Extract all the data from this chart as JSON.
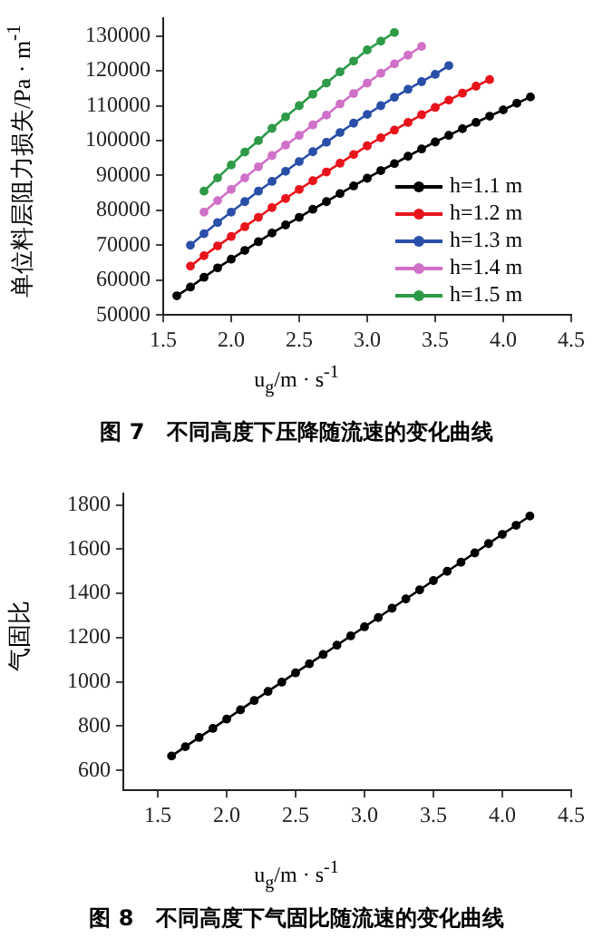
{
  "chart_data": [
    {
      "type": "line",
      "title": "图 7　不同高度下压降随流速的变化曲线",
      "xlabel": "u$_{g}$/m · s$^{-1}$",
      "ylabel": "单位料层阻力损失/Pa · m$^{-1}$",
      "xlim": [
        1.5,
        4.5
      ],
      "ylim": [
        50000,
        135000
      ],
      "xticks": [
        {
          "value": 1.5,
          "label": "1.5"
        },
        {
          "value": 2,
          "label": "2.0"
        },
        {
          "value": 2.5,
          "label": "2.5"
        },
        {
          "value": 3,
          "label": "3.0"
        },
        {
          "value": 3.5,
          "label": "3.5"
        },
        {
          "value": 4,
          "label": "4.0"
        },
        {
          "value": 4.5,
          "label": "4.5"
        }
      ],
      "yticks": [
        50000,
        60000,
        70000,
        80000,
        90000,
        100000,
        110000,
        120000,
        130000
      ],
      "legend": "bottom right",
      "marker": "circle",
      "series": [
        {
          "name": "h=1.1 m",
          "color": "#000000",
          "x": [
            1.6,
            1.7,
            1.8,
            1.9,
            2.0,
            2.1,
            2.2,
            2.3,
            2.4,
            2.5,
            2.6,
            2.7,
            2.8,
            2.9,
            3.0,
            3.1,
            3.2,
            3.3,
            3.4,
            3.5,
            3.6,
            3.7,
            3.8,
            3.9,
            4.0,
            4.1,
            4.2
          ],
          "values": [
            55500,
            58000,
            60800,
            63500,
            66000,
            68500,
            71000,
            73500,
            75800,
            78000,
            80300,
            82500,
            84800,
            87000,
            89200,
            91400,
            93400,
            95500,
            97600,
            99600,
            101500,
            103400,
            105200,
            107000,
            108800,
            110700,
            112500
          ]
        },
        {
          "name": "h=1.2 m",
          "color": "#e8141c",
          "x": [
            1.7,
            1.8,
            1.9,
            2.0,
            2.1,
            2.2,
            2.3,
            2.4,
            2.5,
            2.6,
            2.7,
            2.8,
            2.9,
            3.0,
            3.1,
            3.2,
            3.3,
            3.4,
            3.5,
            3.6,
            3.7,
            3.8,
            3.9
          ],
          "values": [
            64000,
            67000,
            69800,
            72500,
            75300,
            78000,
            80800,
            83400,
            86000,
            88500,
            91000,
            93500,
            96000,
            98500,
            100800,
            103000,
            105200,
            107400,
            109500,
            111600,
            113600,
            115600,
            117500
          ]
        },
        {
          "name": "h=1.3 m",
          "color": "#2a4fa8",
          "x": [
            1.7,
            1.8,
            1.9,
            2.0,
            2.1,
            2.2,
            2.3,
            2.4,
            2.5,
            2.6,
            2.7,
            2.8,
            2.9,
            3.0,
            3.1,
            3.2,
            3.3,
            3.4,
            3.5,
            3.6
          ],
          "values": [
            70000,
            73300,
            76500,
            79500,
            82500,
            85500,
            88300,
            91200,
            94000,
            96800,
            99500,
            102300,
            105000,
            107500,
            110000,
            112400,
            114700,
            116900,
            119000,
            121500
          ]
        },
        {
          "name": "h=1.4 m",
          "color": "#d070c8",
          "x": [
            1.8,
            1.9,
            2.0,
            2.1,
            2.2,
            2.3,
            2.4,
            2.5,
            2.6,
            2.7,
            2.8,
            2.9,
            3.0,
            3.1,
            3.2,
            3.3,
            3.4
          ],
          "values": [
            79500,
            82800,
            86000,
            89300,
            92500,
            95700,
            98700,
            101500,
            104500,
            107300,
            110500,
            113500,
            116500,
            119300,
            122000,
            124500,
            127000
          ]
        },
        {
          "name": "h=1.5 m",
          "color": "#2e9a48",
          "x": [
            1.8,
            1.9,
            2.0,
            2.1,
            2.2,
            2.3,
            2.4,
            2.5,
            2.6,
            2.7,
            2.8,
            2.9,
            3.0,
            3.1,
            3.2
          ],
          "values": [
            85500,
            89300,
            93000,
            96700,
            100000,
            103500,
            106800,
            110000,
            113300,
            116500,
            119700,
            122800,
            126000,
            128500,
            131000
          ]
        }
      ]
    },
    {
      "type": "line",
      "title": "图 8　不同高度下气固比随流速的变化曲线",
      "xlabel": "u$_{g}$/m · s$^{-1}$",
      "ylabel": "气固比",
      "xlim": [
        1.25,
        4.5
      ],
      "ylim": [
        510,
        1850
      ],
      "xticks": [
        {
          "value": 1.5,
          "label": "1.5"
        },
        {
          "value": 2,
          "label": "2.0"
        },
        {
          "value": 2.5,
          "label": "2.5"
        },
        {
          "value": 3,
          "label": "3.0"
        },
        {
          "value": 3.5,
          "label": "3.5"
        },
        {
          "value": 4,
          "label": "4.0"
        },
        {
          "value": 4.5,
          "label": "4.5"
        }
      ],
      "yticks": [
        600,
        800,
        1000,
        1200,
        1400,
        1600,
        1800
      ],
      "marker": "circle",
      "x": [
        1.6,
        1.7,
        1.8,
        1.9,
        2.0,
        2.1,
        2.2,
        2.3,
        2.4,
        2.5,
        2.6,
        2.7,
        2.8,
        2.9,
        3.0,
        3.1,
        3.2,
        3.3,
        3.4,
        3.5,
        3.6,
        3.7,
        3.8,
        3.9,
        4.0,
        4.1,
        4.2
      ],
      "series": [
        {
          "color": "#000000",
          "values": [
            665,
            707,
            749,
            790,
            832,
            874,
            916,
            957,
            999,
            1041,
            1082,
            1124,
            1166,
            1208,
            1249,
            1291,
            1333,
            1375,
            1416,
            1458,
            1500,
            1541,
            1583,
            1625,
            1667,
            1708,
            1750
          ]
        }
      ]
    }
  ]
}
